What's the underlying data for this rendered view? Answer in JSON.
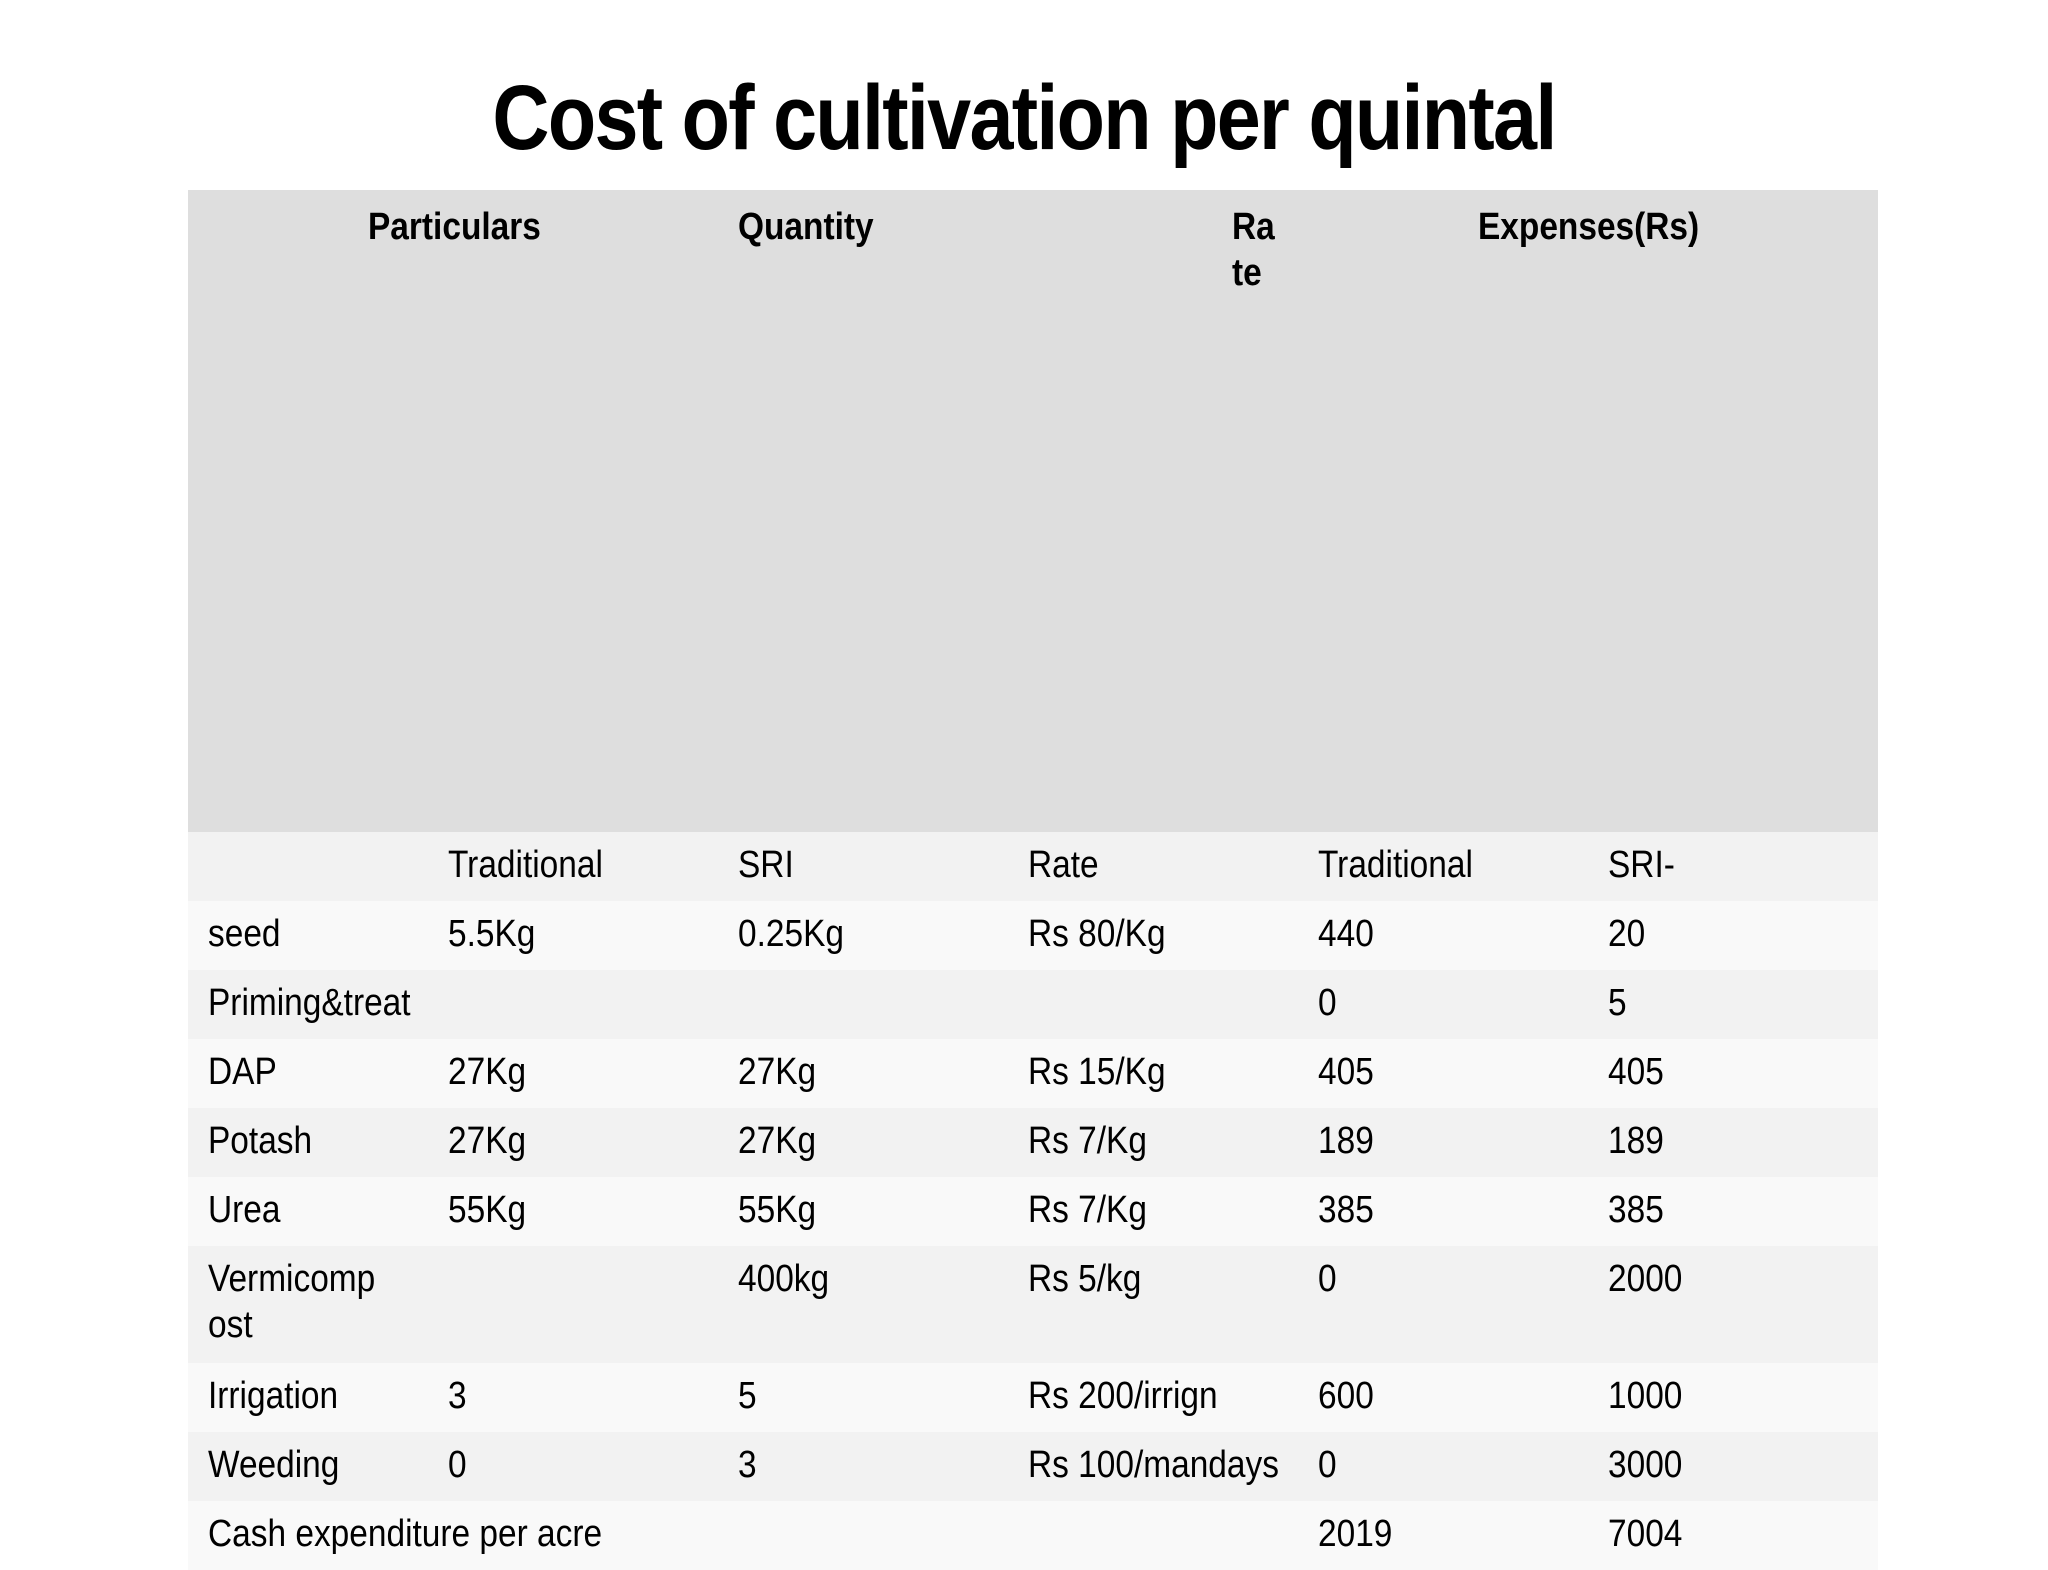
{
  "title": "Cost of cultivation per quintal",
  "header": {
    "particulars": "Particulars",
    "quantity": "Quantity",
    "rate": "Rate",
    "expenses": "Expenses(Rs)"
  },
  "subheader": [
    "",
    "Traditional",
    "SRI",
    "Rate",
    "Traditional",
    "SRI-"
  ],
  "rows": [
    [
      "seed",
      "5.5Kg",
      "0.25Kg",
      "Rs 80/Kg",
      "440",
      "20"
    ],
    [
      "Priming&treat",
      "",
      "",
      "",
      "0",
      "5"
    ],
    [
      "DAP",
      "27Kg",
      "27Kg",
      "Rs 15/Kg",
      "405",
      "405"
    ],
    [
      "Potash",
      "27Kg",
      "27Kg",
      "Rs 7/Kg",
      "189",
      "189"
    ],
    [
      "Urea",
      "55Kg",
      "55Kg",
      "Rs 7/Kg",
      "385",
      "385"
    ],
    [
      "Vermicompost",
      "",
      "400kg",
      "Rs 5/kg",
      "0",
      "2000"
    ],
    [
      "Irrigation",
      "3",
      "5",
      "Rs 200/irrign",
      "600",
      "1000"
    ],
    [
      "Weeding",
      "0",
      "3",
      "Rs 100/mandays",
      "0",
      "3000"
    ],
    [
      "Cash expenditure per acre",
      "",
      "",
      "",
      "2019",
      "7004"
    ]
  ]
}
